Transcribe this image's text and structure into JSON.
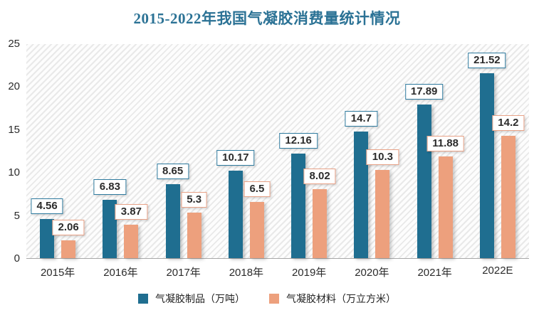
{
  "title": "2015-2022年我国气凝胶消费量统计情况",
  "colors": {
    "title_text": "#2b7295",
    "series1": "#1f6e90",
    "series2": "#eda07d",
    "series1_border": "#2e7a9e",
    "series2_border": "#e8a287",
    "axis_line": "#a8a8a8",
    "tick_text": "#2b2b2b",
    "hatch_stripe": "#e9e9e9"
  },
  "chart_data": {
    "type": "bar",
    "title": "2015-2022年我国气凝胶消费量统计情况",
    "categories": [
      "2015年",
      "2016年",
      "2017年",
      "2018年",
      "2019年",
      "2020年",
      "2021年",
      "2022E"
    ],
    "series": [
      {
        "name": "气凝胶制品（万吨）",
        "color": "#1f6e90",
        "label_border": "#2e7a9e",
        "values": [
          4.56,
          6.83,
          8.65,
          10.17,
          12.16,
          14.7,
          17.89,
          21.52
        ],
        "labels": [
          "4.56",
          "6.83",
          "8.65",
          "10.17",
          "12.16",
          "14.7",
          "17.89",
          "21.52"
        ]
      },
      {
        "name": "气凝胶材料（万立方米）",
        "color": "#eda07d",
        "label_border": "#e8a287",
        "values": [
          2.06,
          3.87,
          5.3,
          6.5,
          8.02,
          10.3,
          11.88,
          14.2
        ],
        "labels": [
          "2.06",
          "3.87",
          "5.3",
          "6.5",
          "8.02",
          "10.3",
          "11.88",
          "14.2"
        ]
      }
    ],
    "xlabel": "",
    "ylabel": "",
    "ylim": [
      0,
      25
    ],
    "yticks": [
      0,
      5,
      10,
      15,
      20,
      25
    ],
    "grid": false,
    "plot_background": "diagonal-hatch",
    "legend_position": "bottom"
  }
}
